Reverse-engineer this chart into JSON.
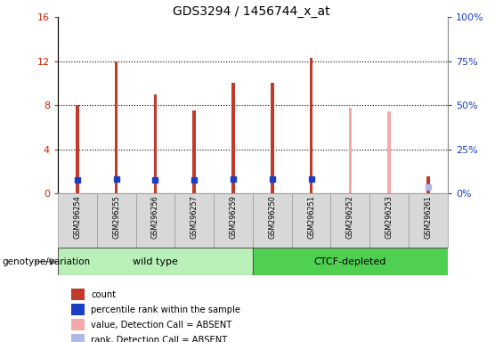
{
  "title": "GDS3294 / 1456744_x_at",
  "samples": [
    "GSM296254",
    "GSM296255",
    "GSM296256",
    "GSM296257",
    "GSM296259",
    "GSM296250",
    "GSM296251",
    "GSM296252",
    "GSM296253",
    "GSM296261"
  ],
  "count_values": [
    8.0,
    12.0,
    9.0,
    7.5,
    10.0,
    10.0,
    12.3,
    null,
    null,
    1.5
  ],
  "rank_values": [
    7.7,
    8.1,
    7.8,
    7.6,
    8.0,
    8.0,
    8.2,
    null,
    null,
    null
  ],
  "absent_value_values": [
    null,
    null,
    null,
    null,
    null,
    null,
    null,
    7.8,
    7.4,
    null
  ],
  "absent_rank_values": [
    null,
    null,
    null,
    null,
    null,
    null,
    null,
    null,
    null,
    3.5
  ],
  "ylim_left": [
    0,
    16
  ],
  "ylim_right": [
    0,
    100
  ],
  "yticks_left": [
    0,
    4,
    8,
    12,
    16
  ],
  "yticks_right": [
    0,
    25,
    50,
    75,
    100
  ],
  "count_color": "#c0392b",
  "rank_color": "#1a3fc4",
  "absent_value_color": "#f4a9a8",
  "absent_rank_color": "#b0b8e8",
  "wild_type_color": "#b8f0b8",
  "ctcf_color": "#50d050",
  "bg_color": "#d8d8d8",
  "plot_bg": "#ffffff",
  "left_tick_color": "#cc2200",
  "right_tick_color": "#1a3fc4",
  "bar_linewidth": 4.5,
  "rank_marker_size": 5,
  "n_wild": 5,
  "n_ctcf": 5
}
